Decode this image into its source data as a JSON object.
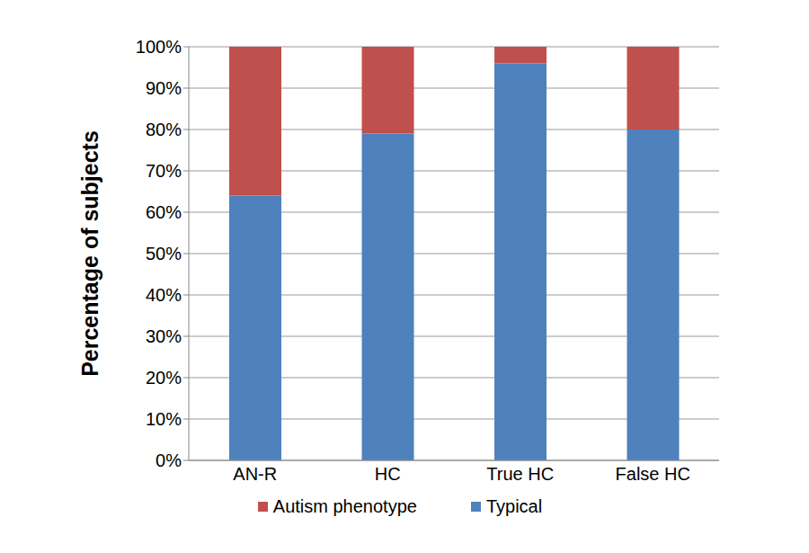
{
  "chart_data": {
    "type": "bar",
    "stacked": true,
    "categories": [
      "AN-R",
      "HC",
      "True HC",
      "False HC"
    ],
    "series": [
      {
        "name": "Typical",
        "color": "#4f81bd",
        "values": [
          64,
          79,
          96,
          80
        ]
      },
      {
        "name": "Autism phenotype",
        "color": "#c0504d",
        "values": [
          36,
          21,
          4,
          20
        ]
      }
    ],
    "y_label": "Percentage of subjects",
    "ylim": [
      0,
      100
    ],
    "yticks": [
      {
        "value": 0,
        "label": "0%"
      },
      {
        "value": 10,
        "label": "10%"
      },
      {
        "value": 20,
        "label": "20%"
      },
      {
        "value": 30,
        "label": "30%"
      },
      {
        "value": 40,
        "label": "40%"
      },
      {
        "value": 50,
        "label": "50%"
      },
      {
        "value": 60,
        "label": "60%"
      },
      {
        "value": 70,
        "label": "70%"
      },
      {
        "value": 80,
        "label": "80%"
      },
      {
        "value": 90,
        "label": "90%"
      },
      {
        "value": 100,
        "label": "100%"
      }
    ],
    "grid": true,
    "legend": "bottom"
  }
}
